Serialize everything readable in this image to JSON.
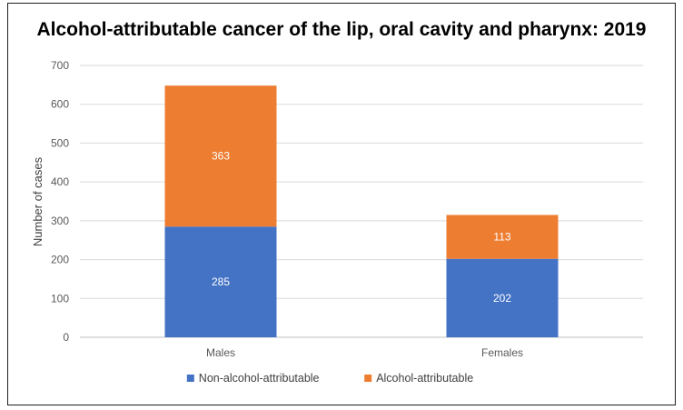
{
  "chart_data": {
    "type": "bar",
    "stacked": true,
    "title": "Alcohol-attributable cancer of the lip, oral cavity and pharynx: 2019",
    "xlabel": "",
    "ylabel": "Number of cases",
    "categories": [
      "Males",
      "Females"
    ],
    "series": [
      {
        "name": "Non-alcohol-attributable",
        "values": [
          285,
          202
        ],
        "color": "#4472c4"
      },
      {
        "name": "Alcohol-attributable",
        "values": [
          363,
          113
        ],
        "color": "#ed7d31"
      }
    ],
    "ylim": [
      0,
      700
    ],
    "yticks": [
      0,
      100,
      200,
      300,
      400,
      500,
      600,
      700
    ],
    "grid": true,
    "legend_position": "bottom"
  }
}
